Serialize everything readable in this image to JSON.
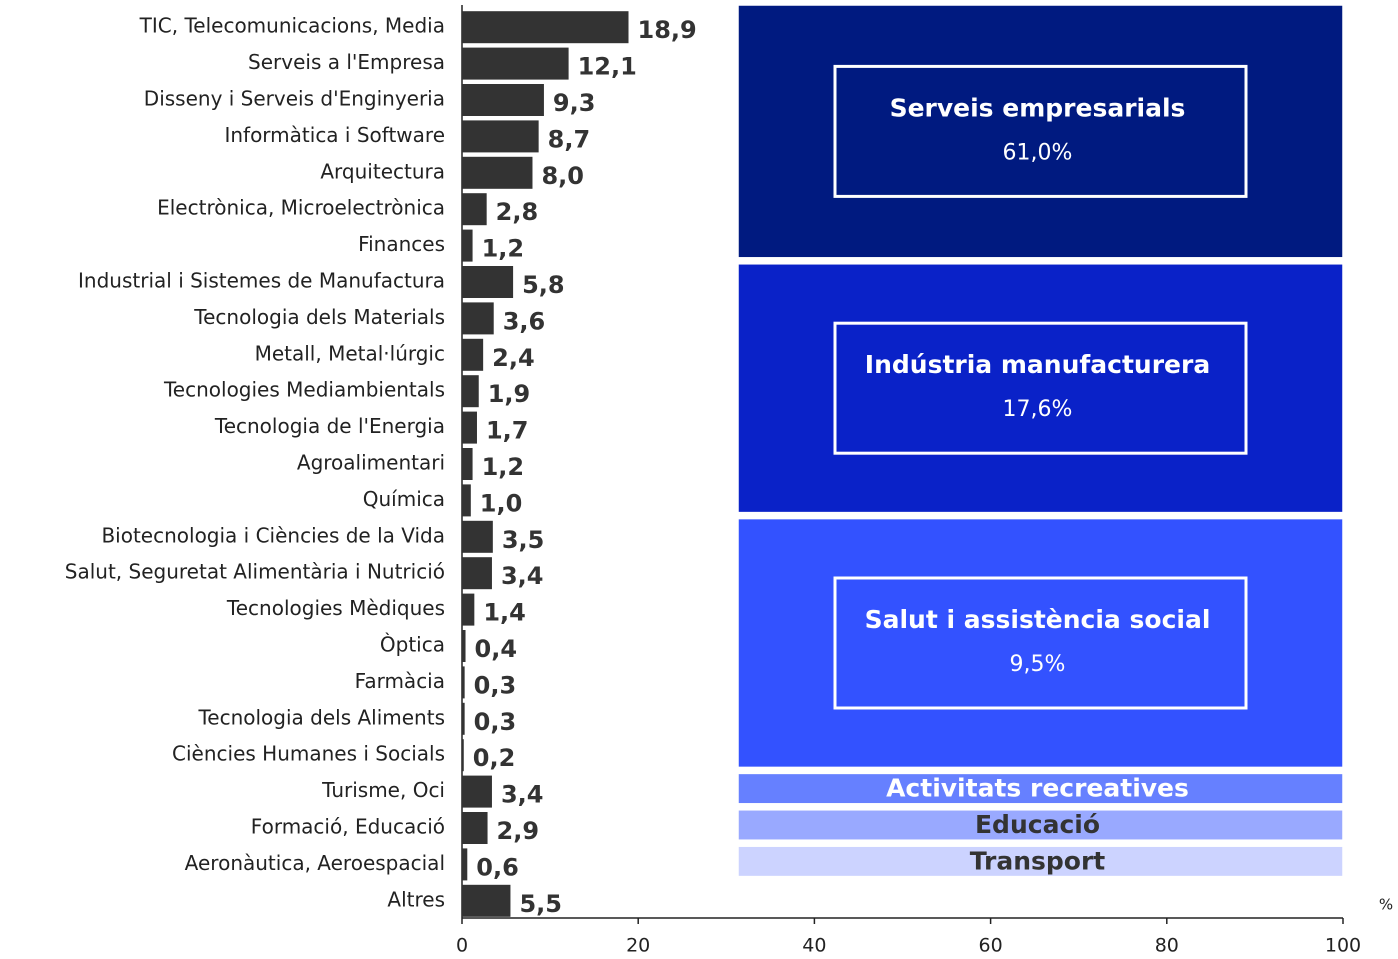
{
  "chart_data": {
    "type": "bar",
    "orientation": "horizontal",
    "categories": [
      "TIC, Telecomunicacions, Media",
      "Serveis a l'Empresa",
      "Disseny i Serveis d'Enginyeria",
      "Informàtica i Software",
      "Arquitectura",
      "Electrònica, Microelectrònica",
      "Finances",
      "Industrial i Sistemes de Manufactura",
      "Tecnologia dels Materials",
      "Metall, Metal·lúrgic",
      "Tecnologies Mediambientals",
      "Tecnologia de l'Energia",
      "Agroalimentari",
      "Química",
      "Biotecnologia i Ciències de la Vida",
      "Salut, Seguretat Alimentària i Nutrició",
      "Tecnologies Mèdiques",
      "Òptica",
      "Farmàcia",
      "Tecnologia dels Aliments",
      "Ciències Humanes i Socials",
      "Turisme, Oci",
      "Formació, Educació",
      "Aeronàutica, Aeroespacial",
      "Altres"
    ],
    "values": [
      18.9,
      12.1,
      9.3,
      8.7,
      8.0,
      2.8,
      1.2,
      5.8,
      3.6,
      2.4,
      1.9,
      1.7,
      1.2,
      1.0,
      3.5,
      3.4,
      1.4,
      0.4,
      0.3,
      0.3,
      0.2,
      3.4,
      2.9,
      0.6,
      5.5
    ],
    "value_labels": [
      "18,9",
      "12,1",
      "9,3",
      "8,7",
      "8,0",
      "2,8",
      "1,2",
      "5,8",
      "3,6",
      "2,4",
      "1,9",
      "1,7",
      "1,2",
      "1,0",
      "3,5",
      "3,4",
      "1,4",
      "0,4",
      "0,3",
      "0,3",
      "0,2",
      "3,4",
      "2,9",
      "0,6",
      "5,5"
    ],
    "color": "#333333",
    "xlim": [
      0,
      100
    ],
    "xticks": [
      0,
      20,
      40,
      60,
      80,
      100
    ],
    "x_unit": "%",
    "groups": [
      {
        "name": "Serveis empresarials",
        "value": 61.0,
        "value_label": "61,0%",
        "span": 7,
        "color": "#001a80"
      },
      {
        "name": "Indústria manufacturera",
        "value": 17.6,
        "value_label": "17,6%",
        "span": 7,
        "color": "#0a22c8"
      },
      {
        "name": "Salut i assistència social",
        "value": 9.5,
        "value_label": "9,5%",
        "span": 7,
        "color": "#3352ff"
      },
      {
        "name": "Activitats recreatives",
        "span": 1,
        "color": "#6680ff"
      },
      {
        "name": "Educació",
        "span": 1,
        "color": "#99a9ff"
      },
      {
        "name": "Transport",
        "span": 1,
        "color": "#ccd3ff"
      }
    ]
  }
}
